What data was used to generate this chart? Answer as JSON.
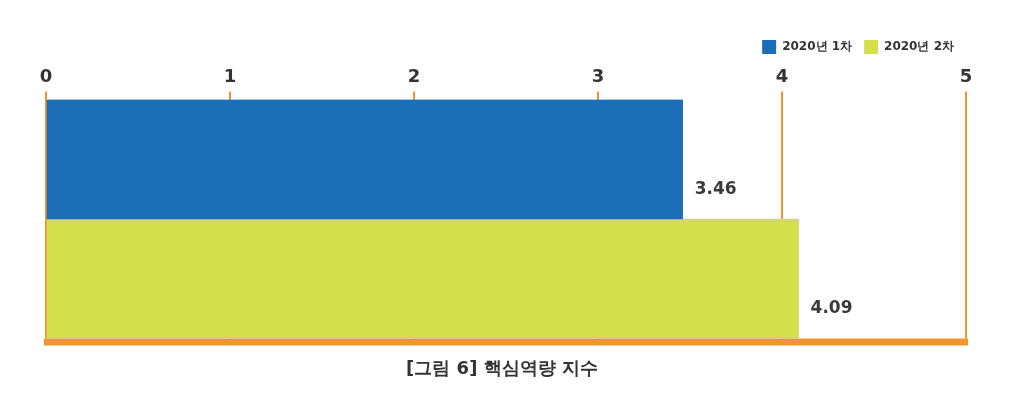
{
  "chart_data": {
    "type": "bar",
    "orientation": "horizontal",
    "title": "[그림 6] 핵심역량 지수",
    "categories": [
      null
    ],
    "series": [
      {
        "name": "2020년 1차",
        "color": "#1c6fb6",
        "values": [
          3.46
        ]
      },
      {
        "name": "2020년 2차",
        "color": "#d4df4c",
        "values": [
          4.09
        ]
      }
    ],
    "xlim": [
      0,
      5
    ],
    "xticks": [
      0,
      1,
      2,
      3,
      4,
      5
    ],
    "grid": "x",
    "legend": "top right",
    "data_labels": true
  }
}
